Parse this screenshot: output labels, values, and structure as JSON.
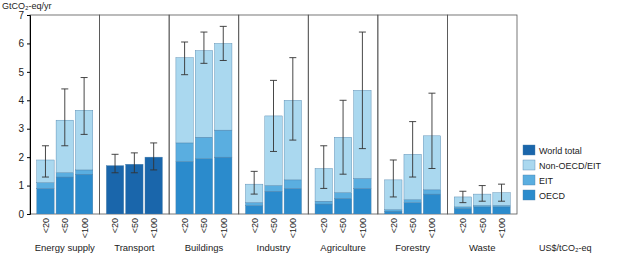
{
  "chart_data": {
    "type": "bar",
    "stacked": true,
    "y_label": "GtCO₂-eq/yr",
    "x_label": "US$/tCO₂-eq",
    "groups": [
      "Energy supply",
      "Transport",
      "Buildings",
      "Industry",
      "Agriculture",
      "Forestry",
      "Waste"
    ],
    "categories": [
      "<20",
      "<50",
      "<100",
      "<20",
      "<50",
      "<100",
      "<20",
      "<50",
      "<100",
      "<20",
      "<50",
      "<100",
      "<20",
      "<50",
      "<100",
      "<20",
      "<50",
      "<100",
      "<20",
      "<50",
      "<100"
    ],
    "series": [
      {
        "name": "OECD",
        "color": "#2b8bcc",
        "values": [
          0.9,
          1.3,
          1.4,
          null,
          null,
          null,
          1.85,
          1.95,
          2.0,
          0.3,
          0.8,
          0.9,
          0.35,
          0.55,
          0.9,
          0.1,
          0.4,
          0.7,
          0.2,
          0.25,
          0.25
        ]
      },
      {
        "name": "EIT",
        "color": "#5aaee0",
        "values": [
          0.2,
          0.15,
          0.15,
          null,
          null,
          null,
          0.65,
          0.75,
          0.95,
          0.1,
          0.2,
          0.3,
          0.1,
          0.2,
          0.35,
          0.05,
          0.1,
          0.15,
          0.05,
          0.05,
          0.05
        ]
      },
      {
        "name": "Non-OECD/EIT",
        "color": "#aad8ef",
        "values": [
          0.8,
          1.85,
          2.1,
          null,
          null,
          null,
          3.0,
          3.05,
          3.05,
          0.65,
          2.45,
          2.8,
          1.15,
          1.95,
          3.1,
          1.05,
          1.6,
          1.9,
          0.35,
          0.4,
          0.45
        ]
      },
      {
        "name": "World total",
        "color": "#1a66ab",
        "values": [
          null,
          null,
          null,
          1.7,
          1.75,
          2.0,
          null,
          null,
          null,
          null,
          null,
          null,
          null,
          null,
          null,
          null,
          null,
          null,
          null,
          null,
          null
        ]
      }
    ],
    "error_range": [
      [
        1.3,
        2.4
      ],
      [
        2.4,
        4.4
      ],
      [
        2.8,
        4.8
      ],
      [
        1.45,
        2.1
      ],
      [
        1.45,
        2.15
      ],
      [
        1.55,
        2.5
      ],
      [
        4.9,
        6.05
      ],
      [
        5.3,
        6.4
      ],
      [
        5.4,
        6.6
      ],
      [
        0.7,
        1.5
      ],
      [
        2.2,
        4.7
      ],
      [
        2.6,
        5.5
      ],
      [
        0.9,
        2.4
      ],
      [
        1.4,
        4.0
      ],
      [
        2.3,
        6.4
      ],
      [
        0.6,
        1.9
      ],
      [
        1.3,
        3.25
      ],
      [
        1.6,
        4.25
      ],
      [
        0.4,
        0.8
      ],
      [
        0.45,
        1.0
      ],
      [
        0.45,
        1.05
      ]
    ],
    "ylim": [
      0,
      7
    ],
    "yticks": [
      0,
      1,
      2,
      3,
      4,
      5,
      6,
      7
    ],
    "grid": false,
    "legend": "right"
  }
}
